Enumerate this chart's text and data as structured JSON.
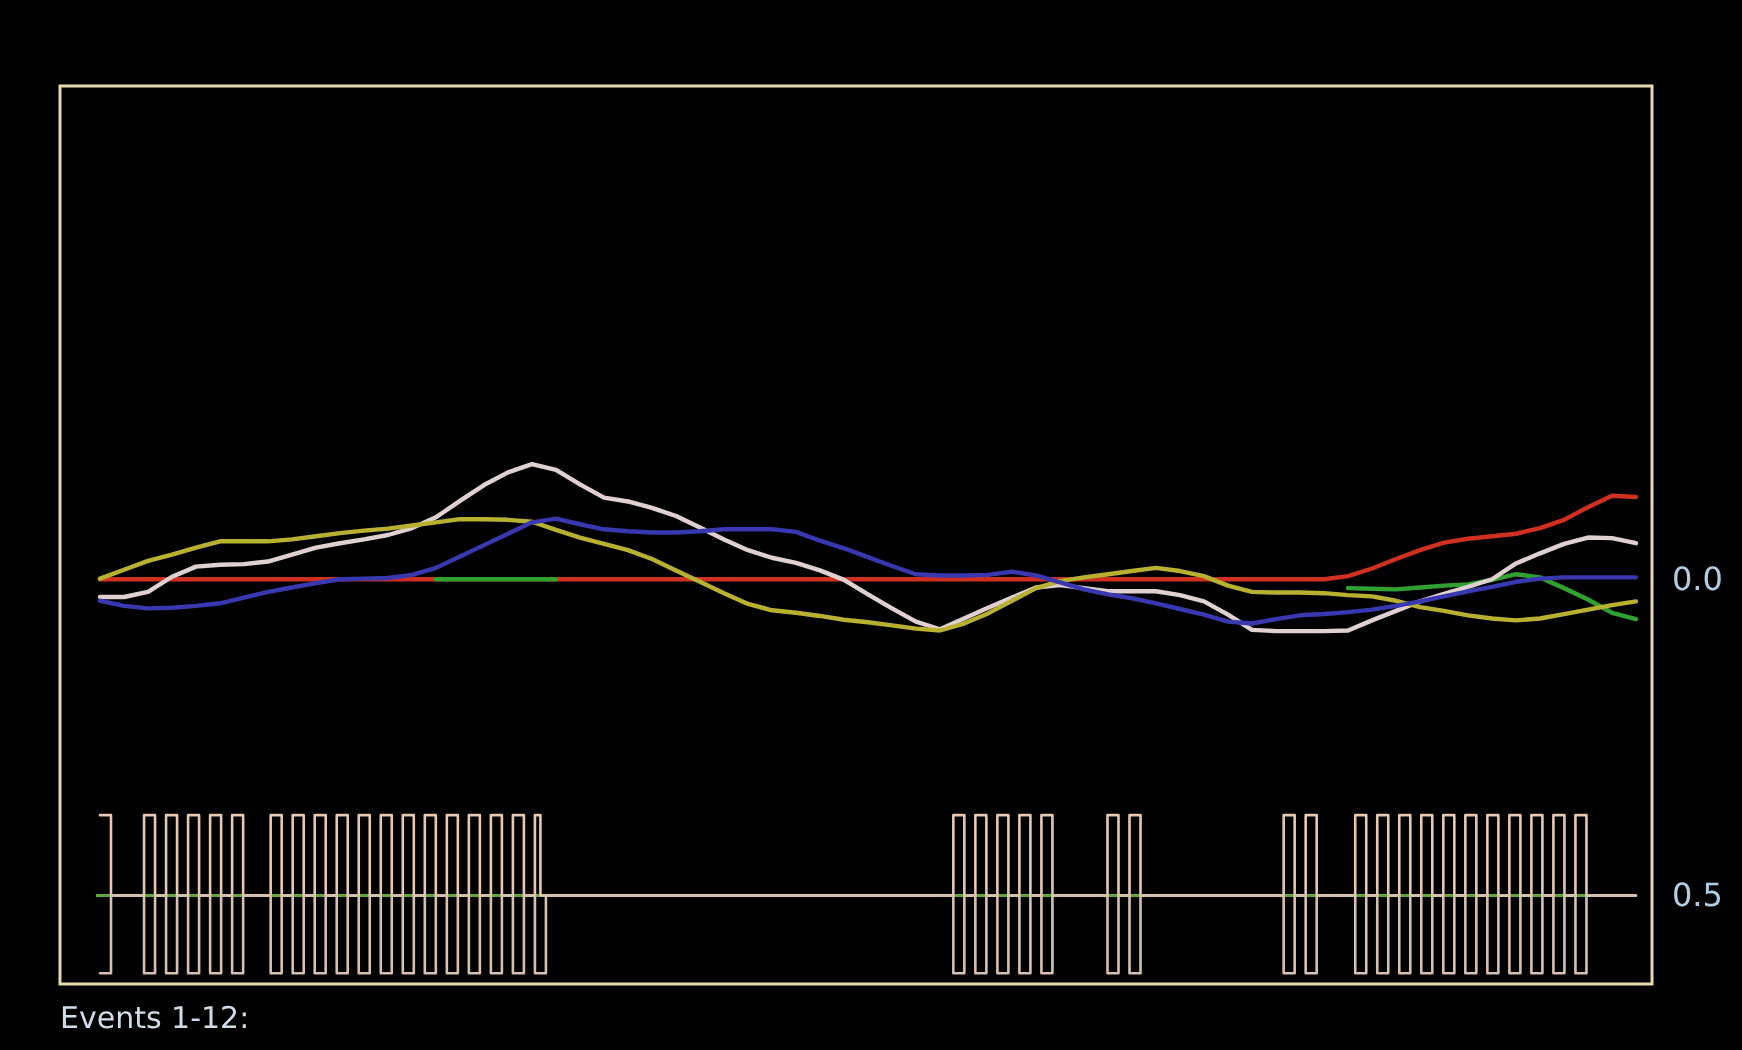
{
  "chart_data": [
    {
      "type": "line",
      "categories": [
        null,
        null,
        null,
        null,
        null,
        null,
        null,
        null,
        null,
        null,
        null,
        null,
        null,
        null,
        null,
        null,
        null,
        null,
        null,
        null,
        null,
        null,
        null,
        null,
        null,
        null,
        null,
        null,
        null,
        null,
        null,
        null,
        null,
        null,
        null,
        null,
        null,
        null,
        null,
        null,
        null,
        null,
        null,
        null,
        null,
        null,
        null,
        null,
        null,
        null,
        null,
        null,
        null,
        null,
        null,
        null,
        null,
        null,
        null,
        null,
        null,
        null,
        null,
        null,
        null
      ],
      "ylim": [
        0.64,
        -0.78
      ],
      "yticks": [
        {
          "value": 0,
          "label": "0.0"
        },
        {
          "value": 0.5,
          "label": "0.5"
        }
      ],
      "tick_labels": "y",
      "series": [
        {
          "color": "#d03020",
          "values": [
            0,
            0,
            0,
            0,
            0,
            0,
            0,
            0,
            0,
            0,
            0,
            0,
            0,
            0,
            0,
            0,
            0,
            0,
            0,
            0,
            0,
            0,
            0,
            0,
            0,
            0,
            0,
            0,
            0,
            0,
            0,
            0,
            0,
            0,
            0,
            0,
            0,
            0,
            0,
            0,
            0,
            0,
            0,
            0,
            0,
            0,
            0,
            0,
            0,
            0,
            0,
            0,
            -0.005,
            -0.017,
            -0.032,
            -0.046,
            -0.058,
            -0.064,
            -0.068,
            -0.072,
            -0.081,
            -0.094,
            -0.114,
            -0.132,
            -0.13
          ]
        },
        {
          "color": "#30a030",
          "values": [
            null,
            null,
            null,
            null,
            null,
            null,
            null,
            null,
            null,
            null,
            null,
            null,
            null,
            null,
            0,
            0,
            0,
            0,
            0,
            0,
            null,
            null,
            null,
            null,
            null,
            null,
            null,
            null,
            null,
            null,
            null,
            null,
            null,
            null,
            null,
            null,
            null,
            null,
            null,
            null,
            null,
            null,
            null,
            null,
            null,
            null,
            null,
            null,
            null,
            null,
            null,
            null,
            0.014,
            0.015,
            0.016,
            0.013,
            0.01,
            0.008,
            0.001,
            -0.008,
            -0.003,
            0.014,
            0.032,
            0.053,
            0.063
          ]
        },
        {
          "color": "#e0d0d0",
          "values": [
            0.028,
            0.028,
            0.02,
            -0.004,
            -0.02,
            -0.023,
            -0.024,
            -0.028,
            -0.039,
            -0.05,
            -0.057,
            -0.063,
            -0.07,
            -0.081,
            -0.098,
            -0.124,
            -0.149,
            -0.169,
            -0.182,
            -0.173,
            -0.15,
            -0.129,
            -0.123,
            -0.113,
            -0.1,
            -0.082,
            -0.063,
            -0.046,
            -0.034,
            -0.026,
            -0.014,
            0.001,
            0.024,
            0.046,
            0.067,
            0.079,
            0.062,
            0.045,
            0.029,
            0.013,
            0.009,
            0.014,
            0.019,
            0.019,
            0.019,
            0.025,
            0.035,
            0.056,
            0.08,
            0.082,
            0.082,
            0.082,
            0.081,
            0.065,
            0.05,
            0.035,
            0.023,
            0.012,
            0,
            -0.025,
            -0.041,
            -0.056,
            -0.066,
            -0.065,
            -0.057
          ]
        },
        {
          "color": "#b8b030",
          "values": [
            -0.001,
            -0.015,
            -0.029,
            -0.039,
            -0.05,
            -0.06,
            -0.06,
            -0.06,
            -0.063,
            -0.068,
            -0.073,
            -0.077,
            -0.08,
            -0.085,
            -0.09,
            -0.095,
            -0.095,
            -0.094,
            -0.091,
            -0.078,
            -0.066,
            -0.056,
            -0.046,
            -0.032,
            -0.014,
            0.004,
            0.022,
            0.039,
            0.049,
            0.053,
            0.058,
            0.064,
            0.068,
            0.073,
            0.078,
            0.081,
            0.07,
            0.054,
            0.034,
            0.014,
            0.003,
            -0.003,
            -0.008,
            -0.013,
            -0.018,
            -0.013,
            -0.005,
            0.01,
            0.02,
            0.021,
            0.021,
            0.022,
            0.025,
            0.027,
            0.034,
            0.044,
            0.05,
            0.057,
            0.062,
            0.065,
            0.062,
            0.055,
            0.048,
            0.041,
            0.035
          ]
        },
        {
          "color": "#3838b0",
          "values": [
            0.034,
            0.042,
            0.046,
            0.045,
            0.042,
            0.038,
            0.029,
            0.02,
            0.013,
            0.006,
            0,
            -0.001,
            -0.002,
            -0.007,
            -0.018,
            -0.036,
            -0.054,
            -0.072,
            -0.09,
            -0.096,
            -0.087,
            -0.079,
            -0.076,
            -0.074,
            -0.074,
            -0.076,
            -0.079,
            -0.079,
            -0.079,
            -0.075,
            -0.061,
            -0.049,
            -0.035,
            -0.021,
            -0.008,
            -0.006,
            -0.006,
            -0.007,
            -0.012,
            -0.006,
            0.005,
            0.016,
            0.024,
            0.03,
            0.038,
            0.047,
            0.056,
            0.067,
            0.07,
            0.063,
            0.057,
            0.055,
            0.052,
            0.048,
            0.042,
            0.035,
            0.027,
            0.019,
            0.012,
            0.004,
            -0.001,
            -0.003,
            -0.003,
            -0.003,
            -0.003
          ]
        }
      ]
    },
    {
      "type": "step",
      "categories": [
        null,
        null,
        null,
        null,
        null,
        null,
        null,
        null,
        null,
        null,
        null,
        null,
        null,
        null,
        null,
        null,
        null,
        null,
        null,
        null,
        null,
        null,
        null,
        null,
        null,
        null,
        null,
        null,
        null,
        null,
        null,
        null,
        null,
        null,
        null,
        null,
        null,
        null,
        null,
        null,
        null,
        null,
        null,
        null,
        null,
        null,
        null,
        null,
        null,
        null,
        null,
        null,
        null,
        null,
        null,
        null,
        null,
        null,
        null,
        null,
        null,
        null,
        null,
        null,
        null,
        null,
        null,
        null,
        null,
        null,
        null,
        null,
        null,
        null,
        null,
        null,
        null,
        null,
        null,
        null,
        null,
        null,
        null,
        null,
        null,
        null,
        null,
        null,
        null,
        null,
        null,
        null,
        null,
        null,
        null,
        null,
        null,
        null,
        null,
        null,
        null,
        null,
        null,
        null,
        null,
        null,
        null,
        null,
        null,
        null,
        null,
        null,
        null,
        null,
        null,
        null,
        null,
        null,
        null,
        null,
        null,
        null,
        null,
        null,
        null,
        null,
        null,
        null,
        null,
        null,
        null,
        null,
        null,
        null,
        null,
        null,
        null,
        null,
        null,
        null,
        null,
        null,
        null,
        null,
        null,
        null,
        null,
        null,
        null,
        null,
        null,
        null,
        null,
        null,
        null,
        null,
        null,
        null,
        null,
        null,
        null,
        null,
        null,
        null,
        null,
        null,
        null,
        null,
        null,
        null,
        null,
        null,
        null,
        null,
        null,
        null,
        null,
        null,
        null,
        null,
        null,
        null,
        null,
        null,
        null,
        null,
        null,
        null,
        null,
        null,
        null,
        null,
        null,
        null,
        null,
        null,
        null,
        null,
        null,
        null,
        null,
        null,
        null,
        null,
        null,
        null,
        null,
        null,
        null,
        null,
        null,
        null,
        null,
        null,
        null,
        null,
        null,
        null,
        null,
        null,
        null,
        null,
        null,
        null,
        null,
        null,
        null,
        null,
        null,
        null,
        null,
        null,
        null,
        null,
        null,
        null,
        null,
        null,
        null,
        null,
        null,
        null,
        null,
        null,
        null,
        null,
        null,
        null,
        null,
        null,
        null,
        null,
        null,
        null,
        null,
        null,
        null,
        null,
        null,
        null,
        null,
        null,
        null,
        null,
        null,
        null,
        null,
        null,
        null,
        null,
        null,
        null,
        null,
        null,
        null,
        null,
        null,
        null,
        null,
        null
      ],
      "ylim": [
        0.64,
        -0.78
      ],
      "tick_labels": false,
      "annotations": [
        "Events 1-12:"
      ],
      "ref_lines": [
        {
          "axis": "y",
          "value": 0.5,
          "color": "#5fa83a"
        }
      ],
      "series": [
        {
          "color": "#e8c8b0",
          "values": [
            0.373,
            0.373,
            0.5,
            0.5,
            0.5,
            0.5,
            0.5,
            0.5,
            0.373,
            0.373,
            0.5,
            0.5,
            0.373,
            0.373,
            0.5,
            0.5,
            0.373,
            0.373,
            0.5,
            0.5,
            0.373,
            0.373,
            0.5,
            0.5,
            0.373,
            0.373,
            0.5,
            0.5,
            0.5,
            0.5,
            0.5,
            0.373,
            0.373,
            0.5,
            0.5,
            0.373,
            0.373,
            0.5,
            0.5,
            0.373,
            0.373,
            0.5,
            0.5,
            0.373,
            0.373,
            0.5,
            0.5,
            0.373,
            0.373,
            0.5,
            0.5,
            0.373,
            0.373,
            0.5,
            0.5,
            0.373,
            0.373,
            0.5,
            0.5,
            0.373,
            0.373,
            0.5,
            0.5,
            0.373,
            0.373,
            0.5,
            0.5,
            0.373,
            0.373,
            0.5,
            0.5,
            0.373,
            0.373,
            0.5,
            0.5,
            0.373,
            0.373,
            0.5,
            0.5,
            0.373,
            0.5,
            0.5,
            0.5,
            0.5,
            0.5,
            0.5,
            0.5,
            0.5,
            0.5,
            0.5,
            0.5,
            0.5,
            0.5,
            0.5,
            0.5,
            0.5,
            0.5,
            0.5,
            0.5,
            0.5,
            0.5,
            0.5,
            0.5,
            0.5,
            0.5,
            0.5,
            0.5,
            0.5,
            0.5,
            0.5,
            0.5,
            0.5,
            0.5,
            0.5,
            0.5,
            0.5,
            0.5,
            0.5,
            0.5,
            0.5,
            0.5,
            0.5,
            0.5,
            0.5,
            0.5,
            0.5,
            0.5,
            0.5,
            0.5,
            0.5,
            0.5,
            0.5,
            0.5,
            0.5,
            0.5,
            0.5,
            0.5,
            0.5,
            0.5,
            0.5,
            0.5,
            0.5,
            0.5,
            0.5,
            0.5,
            0.5,
            0.5,
            0.5,
            0.5,
            0.5,
            0.5,
            0.5,
            0.5,
            0.5,
            0.5,
            0.373,
            0.373,
            0.5,
            0.5,
            0.373,
            0.373,
            0.5,
            0.5,
            0.373,
            0.373,
            0.5,
            0.5,
            0.373,
            0.373,
            0.5,
            0.5,
            0.373,
            0.373,
            0.5,
            0.5,
            0.5,
            0.5,
            0.5,
            0.5,
            0.5,
            0.5,
            0.5,
            0.5,
            0.373,
            0.373,
            0.5,
            0.5,
            0.373,
            0.373,
            0.5,
            0.5,
            0.5,
            0.5,
            0.5,
            0.5,
            0.5,
            0.5,
            0.5,
            0.5,
            0.5,
            0.5,
            0.5,
            0.5,
            0.5,
            0.5,
            0.5,
            0.5,
            0.5,
            0.5,
            0.5,
            0.5,
            0.5,
            0.5,
            0.5,
            0.5,
            0.373,
            0.373,
            0.5,
            0.5,
            0.373,
            0.373,
            0.5,
            0.5,
            0.5,
            0.5,
            0.5,
            0.5,
            0.5,
            0.373,
            0.373,
            0.5,
            0.5,
            0.373,
            0.373,
            0.5,
            0.5,
            0.373,
            0.373,
            0.5,
            0.5,
            0.373,
            0.373,
            0.5,
            0.5,
            0.373,
            0.373,
            0.5,
            0.5,
            0.373,
            0.373,
            0.5,
            0.5,
            0.373,
            0.373,
            0.5,
            0.5,
            0.373,
            0.373,
            0.5,
            0.5,
            0.373,
            0.373,
            0.5,
            0.5,
            0.373,
            0.373,
            0.5,
            0.5,
            0.373,
            0.373,
            0.5,
            0.5,
            0.5,
            0.5,
            0.5,
            0.5,
            0.5,
            0.5,
            0.5,
            0.5
          ]
        },
        {
          "color": "#d8c0b0",
          "values": [
            0.623,
            0.623,
            0.5,
            0.5,
            0.5,
            0.5,
            0.5,
            0.5,
            0.623,
            0.623,
            0.5,
            0.5,
            0.623,
            0.623,
            0.5,
            0.5,
            0.623,
            0.623,
            0.5,
            0.5,
            0.623,
            0.623,
            0.5,
            0.5,
            0.623,
            0.623,
            0.5,
            0.5,
            0.5,
            0.5,
            0.5,
            0.623,
            0.623,
            0.5,
            0.5,
            0.623,
            0.623,
            0.5,
            0.5,
            0.623,
            0.623,
            0.5,
            0.5,
            0.623,
            0.623,
            0.5,
            0.5,
            0.623,
            0.623,
            0.5,
            0.5,
            0.623,
            0.623,
            0.5,
            0.5,
            0.623,
            0.623,
            0.5,
            0.5,
            0.623,
            0.623,
            0.5,
            0.5,
            0.623,
            0.623,
            0.5,
            0.5,
            0.623,
            0.623,
            0.5,
            0.5,
            0.623,
            0.623,
            0.5,
            0.5,
            0.623,
            0.623,
            0.5,
            0.5,
            0.623,
            0.623,
            0.5,
            0.5,
            0.5,
            0.5,
            0.5,
            0.5,
            0.5,
            0.5,
            0.5,
            0.5,
            0.5,
            0.5,
            0.5,
            0.5,
            0.5,
            0.5,
            0.5,
            0.5,
            0.5,
            0.5,
            0.5,
            0.5,
            0.5,
            0.5,
            0.5,
            0.5,
            0.5,
            0.5,
            0.5,
            0.5,
            0.5,
            0.5,
            0.5,
            0.5,
            0.5,
            0.5,
            0.5,
            0.5,
            0.5,
            0.5,
            0.5,
            0.5,
            0.5,
            0.5,
            0.5,
            0.5,
            0.5,
            0.5,
            0.5,
            0.5,
            0.5,
            0.5,
            0.5,
            0.5,
            0.5,
            0.5,
            0.5,
            0.5,
            0.5,
            0.5,
            0.5,
            0.5,
            0.5,
            0.5,
            0.5,
            0.5,
            0.5,
            0.5,
            0.5,
            0.5,
            0.5,
            0.5,
            0.5,
            0.5,
            0.623,
            0.623,
            0.5,
            0.5,
            0.623,
            0.623,
            0.5,
            0.5,
            0.623,
            0.623,
            0.5,
            0.5,
            0.623,
            0.623,
            0.5,
            0.5,
            0.623,
            0.623,
            0.5,
            0.5,
            0.5,
            0.5,
            0.5,
            0.5,
            0.5,
            0.5,
            0.5,
            0.5,
            0.623,
            0.623,
            0.5,
            0.5,
            0.623,
            0.623,
            0.5,
            0.5,
            0.5,
            0.5,
            0.5,
            0.5,
            0.5,
            0.5,
            0.5,
            0.5,
            0.5,
            0.5,
            0.5,
            0.5,
            0.5,
            0.5,
            0.5,
            0.5,
            0.5,
            0.5,
            0.5,
            0.5,
            0.5,
            0.5,
            0.5,
            0.5,
            0.623,
            0.623,
            0.5,
            0.5,
            0.623,
            0.623,
            0.5,
            0.5,
            0.5,
            0.5,
            0.5,
            0.5,
            0.5,
            0.623,
            0.623,
            0.5,
            0.5,
            0.623,
            0.623,
            0.5,
            0.5,
            0.623,
            0.623,
            0.5,
            0.5,
            0.623,
            0.623,
            0.5,
            0.5,
            0.623,
            0.623,
            0.5,
            0.5,
            0.623,
            0.623,
            0.5,
            0.5,
            0.623,
            0.623,
            0.5,
            0.5,
            0.623,
            0.623,
            0.5,
            0.5,
            0.623,
            0.623,
            0.5,
            0.5,
            0.623,
            0.623,
            0.5,
            0.5,
            0.623,
            0.623,
            0.5,
            0.5,
            0.5,
            0.5,
            0.5,
            0.5,
            0.5,
            0.5,
            0.5,
            0.5
          ]
        }
      ]
    }
  ]
}
